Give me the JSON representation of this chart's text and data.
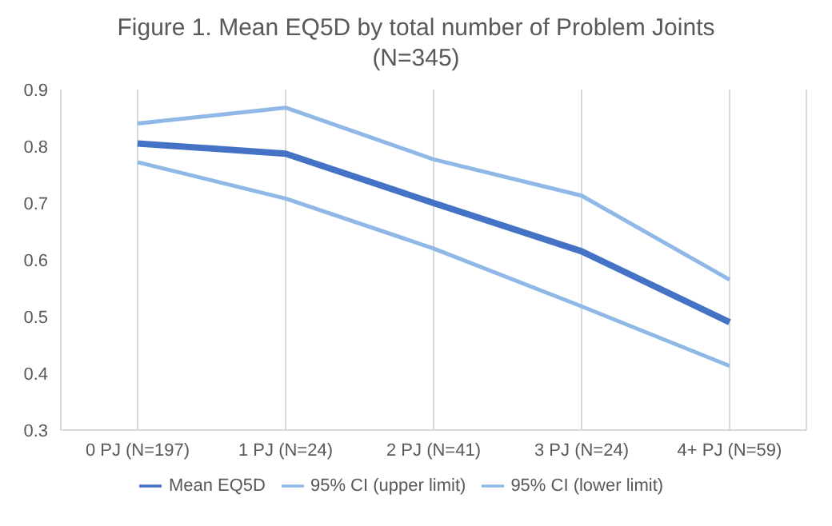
{
  "chart_data": {
    "type": "line",
    "title": "Figure 1. Mean EQ5D by total number of Problem Joints\n(N=345)",
    "categories": [
      "0 PJ (N=197)",
      "1 PJ (N=24)",
      "2 PJ (N=41)",
      "3 PJ (N=24)",
      "4+ PJ (N=59)"
    ],
    "series": [
      {
        "name": "Mean EQ5D",
        "color": "#4472c4",
        "values": [
          0.805,
          0.787,
          0.7,
          0.615,
          0.49
        ]
      },
      {
        "name": "95% CI (upper limit)",
        "color": "#8fb8e6",
        "values": [
          0.84,
          0.868,
          0.777,
          0.713,
          0.565
        ]
      },
      {
        "name": "95% CI (lower limit)",
        "color": "#8fb8e6",
        "values": [
          0.772,
          0.708,
          0.62,
          0.518,
          0.413
        ]
      }
    ],
    "ylim": [
      0.3,
      0.9
    ],
    "yticks": [
      {
        "value": 0.3,
        "label": "0.3"
      },
      {
        "value": 0.4,
        "label": "0.4"
      },
      {
        "value": 0.5,
        "label": "0.5"
      },
      {
        "value": 0.6,
        "label": "0.6"
      },
      {
        "value": 0.7,
        "label": "0.7"
      },
      {
        "value": 0.8,
        "label": "0.8"
      },
      {
        "value": 0.9,
        "label": "0.9"
      }
    ],
    "grid": "x",
    "legend": "bottom",
    "marker": "none",
    "line_style": "solid"
  }
}
